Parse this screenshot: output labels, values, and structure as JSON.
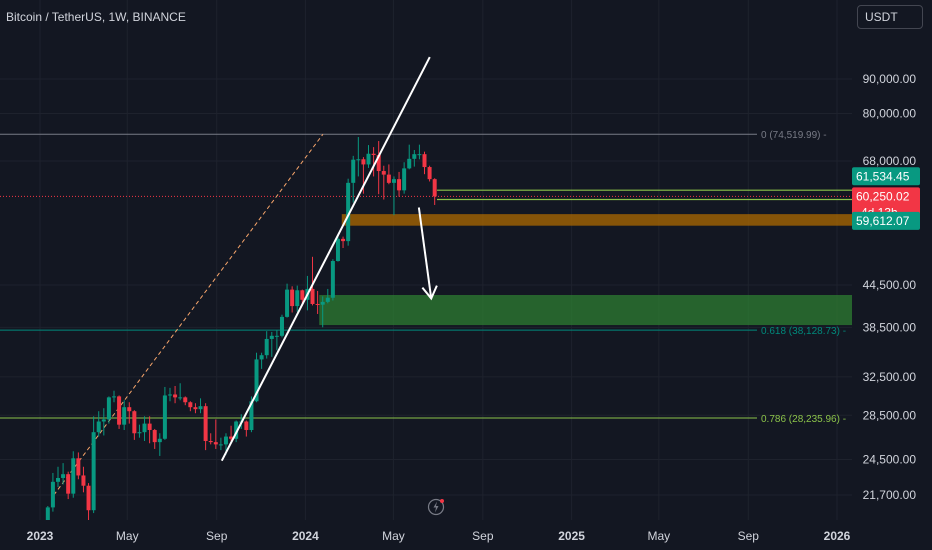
{
  "header": {
    "symbol_title": "Bitcoin / TetherUS, 1W, BINANCE",
    "currency_button": "USDT"
  },
  "colors": {
    "background": "#131722",
    "up": "#089981",
    "down": "#f23645",
    "grid": "#1e222d",
    "axis_text": "#d1d4dc",
    "fib_0": "#787b86",
    "fib_618": "#00897b",
    "fib_786": "#8bc34a",
    "support_zone": "#2e7d32",
    "resistance_zone": "#ad6a00",
    "trendline": "#ffffff",
    "channel_dashed": "#f7a56b"
  },
  "price_axis": {
    "ticks": [
      "90,000.00",
      "80,000.00",
      "68,000.00",
      "61,534.45",
      "60,250.02",
      "59,612.07",
      "44,500.00",
      "38,500.00",
      "32,500.00",
      "28,500.00",
      "24,500.00",
      "21,700.00"
    ]
  },
  "price_labels": {
    "green_high": "61,534.45",
    "last": "60,250.02",
    "countdown": "4d 13h",
    "green_low": "59,612.07"
  },
  "time_axis": {
    "ticks": [
      "2023",
      "May",
      "Sep",
      "2024",
      "May",
      "Sep",
      "2025",
      "May",
      "Sep",
      "2026"
    ]
  },
  "fib_labels": {
    "level_0": "0 (74,519.99)",
    "level_618": "0.618 (38,128.73)",
    "level_786": "0.786 (28,235.96)"
  },
  "chart_data": {
    "type": "candlestick",
    "title": "Bitcoin / TetherUS, 1W, BINANCE",
    "scale": "log",
    "ylim": [
      20000,
      100000
    ],
    "xlim": [
      "2023-01-01",
      "2026-03-01"
    ],
    "x_ticks": [
      "2023",
      "May",
      "Sep",
      "2024",
      "May",
      "Sep",
      "2025",
      "May",
      "Sep",
      "2026"
    ],
    "y_ticks": [
      90000,
      80000,
      68000,
      44500,
      38500,
      32500,
      28500,
      24500,
      21700
    ],
    "last_price": 60250.02,
    "fib_levels": [
      {
        "label": "0",
        "value": 74519.99
      },
      {
        "label": "0.618",
        "value": 38128.73
      },
      {
        "label": "0.786",
        "value": 28235.96
      }
    ],
    "horizontal_lines": [
      61534.45,
      59612.07
    ],
    "zones": [
      {
        "kind": "resistance",
        "from": 54500,
        "to": 56700,
        "start": "2024-02-20"
      },
      {
        "kind": "support",
        "from": 38800,
        "to": 43000,
        "start": "2024-01-20"
      }
    ],
    "trendline": {
      "from": [
        "2023-09-08",
        24400
      ],
      "to": [
        "2024-06-20",
        97000
      ]
    },
    "dashed_channel": {
      "from": [
        "2023-01-20",
        21700
      ],
      "to": [
        "2024-01-25",
        74500
      ]
    },
    "projection_arrows": [
      {
        "from": [
          "2024-06-05",
          58000
        ],
        "to": [
          "2024-06-22",
          42500
        ]
      }
    ],
    "ohlc_weekly": [
      [
        "2023-01-02",
        16600,
        17400,
        16500,
        17100
      ],
      [
        "2023-01-09",
        17100,
        20900,
        17000,
        20800
      ],
      [
        "2023-01-16",
        20800,
        23400,
        20500,
        22700
      ],
      [
        "2023-01-23",
        22700,
        23900,
        22300,
        23000
      ],
      [
        "2023-01-30",
        23000,
        24200,
        22500,
        23300
      ],
      [
        "2023-02-06",
        23300,
        23500,
        21400,
        21800
      ],
      [
        "2023-02-13",
        21800,
        25200,
        21500,
        24600
      ],
      [
        "2023-02-20",
        24600,
        25100,
        22900,
        23200
      ],
      [
        "2023-02-27",
        23200,
        23900,
        21900,
        22400
      ],
      [
        "2023-03-06",
        22400,
        22600,
        19600,
        20600
      ],
      [
        "2023-03-13",
        20600,
        28400,
        20400,
        26900
      ],
      [
        "2023-03-20",
        26900,
        28900,
        26500,
        27900
      ],
      [
        "2023-03-27",
        27900,
        29200,
        26600,
        28100
      ],
      [
        "2023-04-03",
        28100,
        30400,
        27700,
        30300
      ],
      [
        "2023-04-10",
        30300,
        31000,
        29800,
        30400
      ],
      [
        "2023-04-17",
        30400,
        30500,
        27200,
        27600
      ],
      [
        "2023-04-24",
        27600,
        30000,
        27100,
        29300
      ],
      [
        "2023-05-01",
        29300,
        29800,
        27700,
        28900
      ],
      [
        "2023-05-08",
        28900,
        29000,
        26200,
        26800
      ],
      [
        "2023-05-15",
        26800,
        27600,
        26400,
        26900
      ],
      [
        "2023-05-22",
        26900,
        28400,
        26100,
        27700
      ],
      [
        "2023-05-29",
        27700,
        28400,
        25900,
        27100
      ],
      [
        "2023-06-05",
        27100,
        27200,
        25400,
        26000
      ],
      [
        "2023-06-12",
        26000,
        26800,
        24800,
        26300
      ],
      [
        "2023-06-19",
        26300,
        31400,
        26200,
        30500
      ],
      [
        "2023-06-26",
        30500,
        31300,
        29900,
        30600
      ],
      [
        "2023-07-03",
        30600,
        31500,
        29700,
        30300
      ],
      [
        "2023-07-10",
        30300,
        31800,
        30000,
        30300
      ],
      [
        "2023-07-17",
        30300,
        30400,
        29500,
        29800
      ],
      [
        "2023-07-24",
        29800,
        29900,
        28900,
        29300
      ],
      [
        "2023-07-31",
        29300,
        29700,
        28700,
        29100
      ],
      [
        "2023-08-07",
        29100,
        30200,
        28700,
        29400
      ],
      [
        "2023-08-14",
        29400,
        29700,
        25300,
        26100
      ],
      [
        "2023-08-21",
        26100,
        26800,
        25800,
        26000
      ],
      [
        "2023-08-28",
        26000,
        28100,
        25400,
        25800
      ],
      [
        "2023-09-04",
        25800,
        26400,
        25300,
        25800
      ],
      [
        "2023-09-11",
        25800,
        26800,
        24900,
        26500
      ],
      [
        "2023-09-18",
        26500,
        27500,
        26100,
        26300
      ],
      [
        "2023-09-25",
        26300,
        28000,
        26000,
        27900
      ],
      [
        "2023-10-02",
        27900,
        28600,
        27200,
        27900
      ],
      [
        "2023-10-09",
        27900,
        28000,
        26500,
        27100
      ],
      [
        "2023-10-16",
        27100,
        30400,
        26900,
        29900
      ],
      [
        "2023-10-23",
        29900,
        35300,
        29800,
        34500
      ],
      [
        "2023-10-30",
        34500,
        35300,
        33400,
        35000
      ],
      [
        "2023-11-06",
        35000,
        38000,
        34600,
        37000
      ],
      [
        "2023-11-13",
        37000,
        37900,
        34800,
        37400
      ],
      [
        "2023-11-20",
        37400,
        38100,
        35600,
        37400
      ],
      [
        "2023-11-27",
        37400,
        40200,
        37200,
        39900
      ],
      [
        "2023-12-04",
        39900,
        44700,
        39800,
        43800
      ],
      [
        "2023-12-11",
        43800,
        44300,
        40500,
        41400
      ],
      [
        "2023-12-18",
        41400,
        44400,
        40600,
        43700
      ],
      [
        "2023-12-25",
        43700,
        43800,
        41500,
        42300
      ],
      [
        "2024-01-01",
        42300,
        45900,
        40800,
        43900
      ],
      [
        "2024-01-08",
        43900,
        49000,
        41500,
        41700
      ],
      [
        "2024-01-15",
        41700,
        43600,
        40300,
        41600
      ],
      [
        "2024-01-22",
        41600,
        42800,
        38500,
        42000
      ],
      [
        "2024-01-29",
        42000,
        43900,
        41800,
        42600
      ],
      [
        "2024-02-05",
        42600,
        48600,
        42200,
        48300
      ],
      [
        "2024-02-12",
        48300,
        52800,
        48200,
        52100
      ],
      [
        "2024-02-19",
        52100,
        52500,
        50500,
        51700
      ],
      [
        "2024-02-26",
        51700,
        64000,
        50900,
        63100
      ],
      [
        "2024-03-04",
        63100,
        69200,
        59000,
        68300
      ],
      [
        "2024-03-11",
        68300,
        73800,
        64500,
        68400
      ],
      [
        "2024-03-18",
        68400,
        68900,
        60800,
        67200
      ],
      [
        "2024-03-25",
        67200,
        71800,
        66400,
        69700
      ],
      [
        "2024-04-01",
        69700,
        71300,
        64500,
        69400
      ],
      [
        "2024-04-08",
        69400,
        72800,
        60700,
        65700
      ],
      [
        "2024-04-15",
        65700,
        66900,
        59600,
        64900
      ],
      [
        "2024-04-22",
        64900,
        67200,
        62800,
        63100
      ],
      [
        "2024-04-29",
        63100,
        64500,
        56500,
        63900
      ],
      [
        "2024-05-06",
        63900,
        65500,
        60200,
        61500
      ],
      [
        "2024-05-13",
        61500,
        67700,
        60800,
        66300
      ],
      [
        "2024-05-20",
        66300,
        71900,
        66100,
        68500
      ],
      [
        "2024-05-27",
        68500,
        70600,
        66700,
        69600
      ],
      [
        "2024-06-03",
        69600,
        71900,
        68400,
        69600
      ],
      [
        "2024-06-10",
        69600,
        70200,
        65000,
        66600
      ],
      [
        "2024-06-17",
        66600,
        66900,
        63400,
        63900
      ],
      [
        "2024-06-24",
        63900,
        64100,
        58500,
        60250
      ]
    ]
  }
}
